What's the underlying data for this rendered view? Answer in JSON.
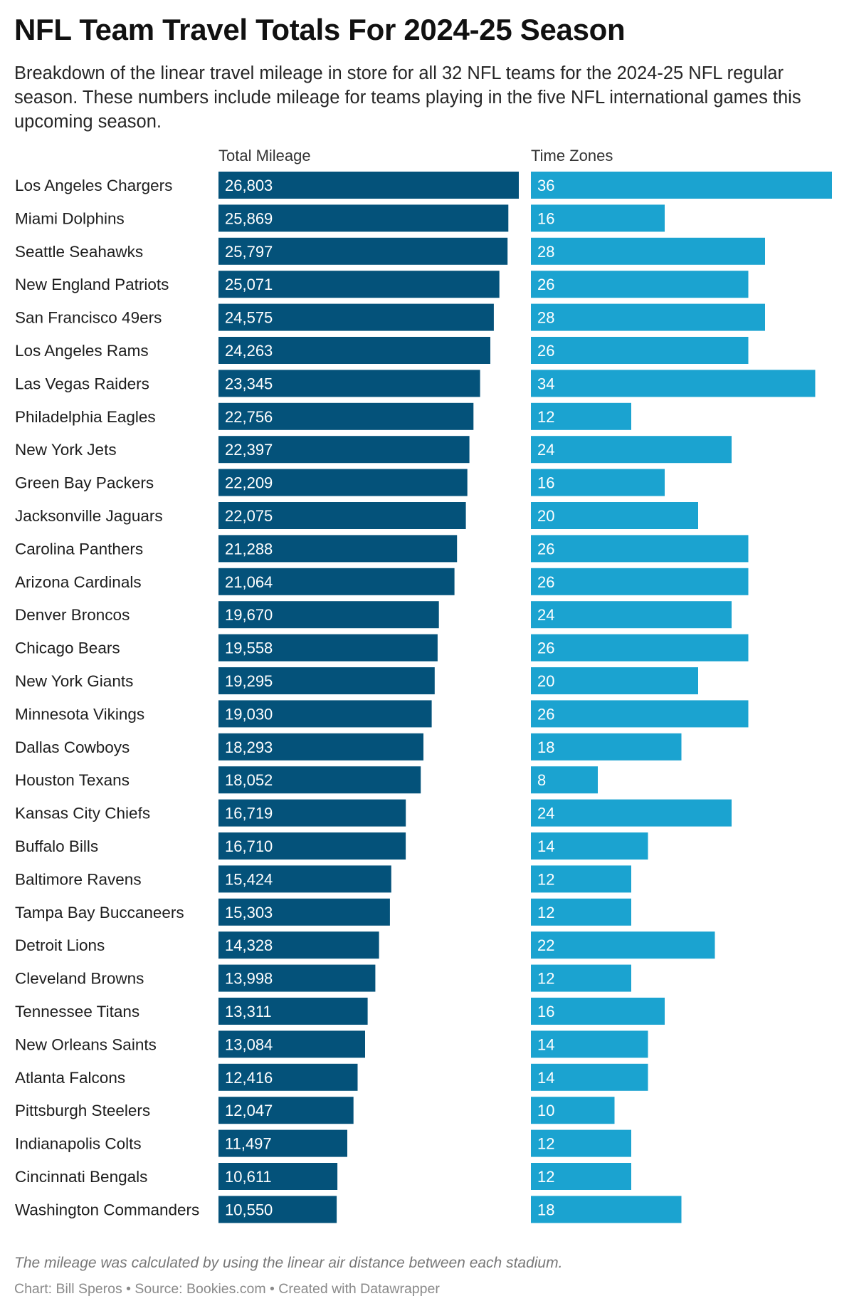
{
  "header": {
    "title": "NFL Team Travel Totals For 2024-25 Season",
    "subtitle": "Breakdown of the linear travel mileage in store for all 32 NFL teams for the 2024-25 NFL regular season. These numbers include mileage for teams playing in the five NFL international games this upcoming season."
  },
  "footer": {
    "notes": "The mileage was calculated by using the linear air distance between each stadium.",
    "byline": "Chart: Bill Speros • Source: Bookies.com • Created with Datawrapper"
  },
  "colors": {
    "mileage": "#04527a",
    "time_zones": "#1ba3d0"
  },
  "chart_data": {
    "type": "bar",
    "orientation": "horizontal",
    "categories": [
      "Los Angeles Chargers",
      "Miami Dolphins",
      "Seattle Seahawks",
      "New England Patriots",
      "San Francisco 49ers",
      "Los Angeles Rams",
      "Las Vegas Raiders",
      "Philadelphia Eagles",
      "New York Jets",
      "Green Bay Packers",
      "Jacksonville Jaguars",
      "Carolina Panthers",
      "Arizona Cardinals",
      "Denver Broncos",
      "Chicago Bears",
      "New York Giants",
      "Minnesota Vikings",
      "Dallas Cowboys",
      "Houston Texans",
      "Kansas City Chiefs",
      "Buffalo Bills",
      "Baltimore Ravens",
      "Tampa Bay Buccaneers",
      "Detroit Lions",
      "Cleveland Browns",
      "Tennessee Titans",
      "New Orleans Saints",
      "Atlanta Falcons",
      "Pittsburgh Steelers",
      "Indianapolis Colts",
      "Cincinnati Bengals",
      "Washington Commanders"
    ],
    "series": [
      {
        "name": "Total Mileage",
        "values": [
          26803,
          25869,
          25797,
          25071,
          24575,
          24263,
          23345,
          22756,
          22397,
          22209,
          22075,
          21288,
          21064,
          19670,
          19558,
          19295,
          19030,
          18293,
          18052,
          16719,
          16710,
          15424,
          15303,
          14328,
          13998,
          13311,
          13084,
          12416,
          12047,
          11497,
          10611,
          10550
        ],
        "labels": [
          "26,803",
          "25,869",
          "25,797",
          "25,071",
          "24,575",
          "24,263",
          "23,345",
          "22,756",
          "22,397",
          "22,209",
          "22,075",
          "21,288",
          "21,064",
          "19,670",
          "19,558",
          "19,295",
          "19,030",
          "18,293",
          "18,052",
          "16,719",
          "16,710",
          "15,424",
          "15,303",
          "14,328",
          "13,998",
          "13,311",
          "13,084",
          "12,416",
          "12,047",
          "11,497",
          "10,611",
          "10,550"
        ],
        "xlim": [
          0,
          26803
        ]
      },
      {
        "name": "Time Zones",
        "values": [
          36,
          16,
          28,
          26,
          28,
          26,
          34,
          12,
          24,
          16,
          20,
          26,
          26,
          24,
          26,
          20,
          26,
          18,
          8,
          24,
          14,
          12,
          12,
          22,
          12,
          16,
          14,
          14,
          10,
          12,
          12,
          18
        ],
        "labels": [
          "36",
          "16",
          "28",
          "26",
          "28",
          "26",
          "34",
          "12",
          "24",
          "16",
          "20",
          "26",
          "26",
          "24",
          "26",
          "20",
          "26",
          "18",
          "8",
          "24",
          "14",
          "12",
          "12",
          "22",
          "12",
          "16",
          "14",
          "14",
          "10",
          "12",
          "12",
          "18"
        ],
        "xlim": [
          0,
          36
        ]
      }
    ],
    "title": "NFL Team Travel Totals For 2024-25 Season",
    "legend": "none"
  }
}
